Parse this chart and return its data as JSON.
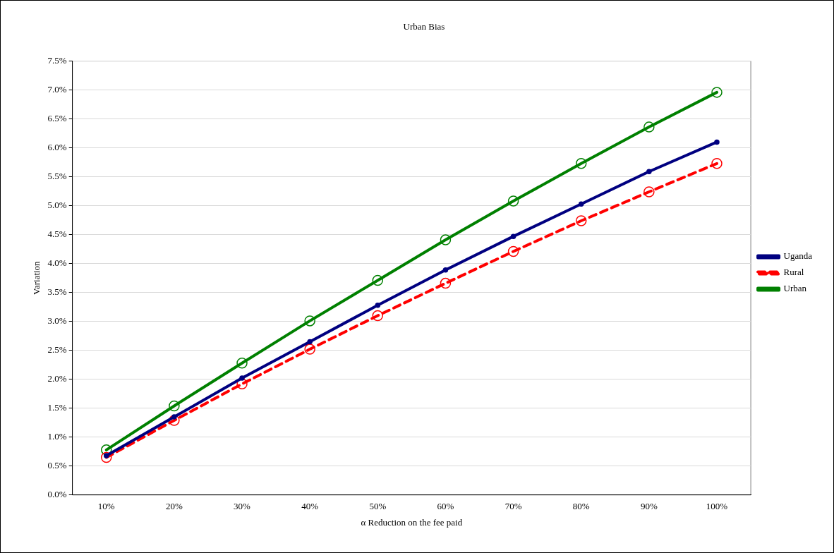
{
  "chart_data": {
    "type": "line",
    "title": "Urban Bias",
    "xlabel": "α Reduction on the fee paid",
    "ylabel": "Variation",
    "categories": [
      "10%",
      "20%",
      "30%",
      "40%",
      "50%",
      "60%",
      "70%",
      "80%",
      "90%",
      "100%"
    ],
    "series": [
      {
        "name": "Uganda",
        "color": "#000080",
        "line_style": "solid",
        "values": [
          0.68,
          1.35,
          2.02,
          2.65,
          3.28,
          3.89,
          4.47,
          5.03,
          5.59,
          6.1
        ]
      },
      {
        "name": "Rural",
        "color": "#ff0000",
        "line_style": "dashed",
        "values": [
          0.65,
          1.29,
          1.92,
          2.52,
          3.1,
          3.66,
          4.21,
          4.74,
          5.24,
          5.73
        ]
      },
      {
        "name": "Urban",
        "color": "#008000",
        "line_style": "solid",
        "values": [
          0.78,
          1.54,
          2.28,
          3.01,
          3.71,
          4.41,
          5.08,
          5.73,
          6.36,
          6.96
        ]
      }
    ],
    "ylim": [
      0,
      7.5
    ],
    "yticks": [
      {
        "value": 0,
        "label": "0.0%"
      },
      {
        "value": 0.5,
        "label": "0.5%"
      },
      {
        "value": 1,
        "label": "1.0%"
      },
      {
        "value": 1.5,
        "label": "1.5%"
      },
      {
        "value": 2,
        "label": "2.0%"
      },
      {
        "value": 2.5,
        "label": "2.5%"
      },
      {
        "value": 3,
        "label": "3.0%"
      },
      {
        "value": 3.5,
        "label": "3.5%"
      },
      {
        "value": 4,
        "label": "4.0%"
      },
      {
        "value": 4.5,
        "label": "4.5%"
      },
      {
        "value": 5,
        "label": "5.0%"
      },
      {
        "value": 5.5,
        "label": "5.5%"
      },
      {
        "value": 6,
        "label": "6.0%"
      },
      {
        "value": 6.5,
        "label": "6.5%"
      },
      {
        "value": 7,
        "label": "7.0%"
      },
      {
        "value": 7.5,
        "label": "7.5%"
      }
    ],
    "grid": "y",
    "legend": "right",
    "marker": "circle"
  }
}
